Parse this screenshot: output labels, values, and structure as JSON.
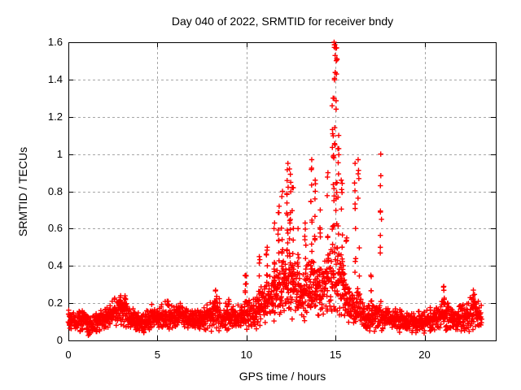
{
  "window": {
    "background": "#ffffff",
    "border_color": "#000000",
    "grid_color": "#a6a6a6"
  },
  "chart_data": {
    "type": "scatter",
    "title": "Day 040 of 2022, SRMTID for receiver bndy",
    "xlabel": "GPS time / hours",
    "ylabel": "SRMTID / TECUs",
    "xlim": [
      0,
      24
    ],
    "ylim": [
      0,
      1.6
    ],
    "xtick_values": [
      0,
      5,
      10,
      15,
      20
    ],
    "xtick_labels": [
      "0",
      "5",
      "10",
      "15",
      "20"
    ],
    "ytick_values": [
      0,
      0.2,
      0.4,
      0.6,
      0.8,
      1,
      1.2,
      1.4,
      1.6
    ],
    "ytick_labels": [
      "0",
      "0.2",
      "0.4",
      "0.6",
      "0.8",
      "1",
      "1.2",
      "1.4",
      "1.6"
    ],
    "grid": true,
    "legend": "none",
    "marker": "plus",
    "marker_color": "#ff0000",
    "x_data_range": [
      0,
      23.2
    ],
    "peak_value": 1.6,
    "peak_hour": 15.0,
    "band_profile": [
      [
        0.0,
        0.12,
        0.05
      ],
      [
        0.4,
        0.1,
        0.04
      ],
      [
        0.8,
        0.11,
        0.05
      ],
      [
        1.3,
        0.08,
        0.05
      ],
      [
        1.8,
        0.11,
        0.04
      ],
      [
        2.3,
        0.13,
        0.05
      ],
      [
        2.7,
        0.15,
        0.07
      ],
      [
        3.1,
        0.16,
        0.07
      ],
      [
        3.5,
        0.12,
        0.05
      ],
      [
        3.9,
        0.1,
        0.04
      ],
      [
        4.3,
        0.09,
        0.05
      ],
      [
        4.7,
        0.13,
        0.05
      ],
      [
        5.1,
        0.12,
        0.05
      ],
      [
        5.5,
        0.14,
        0.06
      ],
      [
        5.9,
        0.12,
        0.05
      ],
      [
        6.3,
        0.14,
        0.05
      ],
      [
        6.7,
        0.12,
        0.05
      ],
      [
        7.1,
        0.11,
        0.04
      ],
      [
        7.6,
        0.12,
        0.05
      ],
      [
        8.1,
        0.14,
        0.07
      ],
      [
        8.35,
        0.16,
        0.09
      ],
      [
        8.6,
        0.12,
        0.05
      ],
      [
        9.0,
        0.13,
        0.06
      ],
      [
        9.4,
        0.12,
        0.05
      ],
      [
        9.8,
        0.13,
        0.06
      ],
      [
        10.0,
        0.15,
        0.08
      ],
      [
        10.3,
        0.13,
        0.06
      ],
      [
        10.6,
        0.16,
        0.08
      ],
      [
        10.9,
        0.19,
        0.09
      ],
      [
        11.2,
        0.22,
        0.1
      ],
      [
        11.5,
        0.24,
        0.11
      ],
      [
        11.8,
        0.27,
        0.13
      ],
      [
        12.1,
        0.29,
        0.14
      ],
      [
        12.4,
        0.3,
        0.15
      ],
      [
        12.7,
        0.27,
        0.13
      ],
      [
        13.0,
        0.22,
        0.1
      ],
      [
        13.3,
        0.25,
        0.11
      ],
      [
        13.6,
        0.28,
        0.13
      ],
      [
        13.9,
        0.29,
        0.13
      ],
      [
        14.2,
        0.27,
        0.12
      ],
      [
        14.5,
        0.28,
        0.13
      ],
      [
        14.8,
        0.32,
        0.16
      ],
      [
        15.1,
        0.33,
        0.17
      ],
      [
        15.4,
        0.27,
        0.13
      ],
      [
        15.7,
        0.2,
        0.1
      ],
      [
        16.0,
        0.18,
        0.09
      ],
      [
        16.3,
        0.19,
        0.1
      ],
      [
        16.6,
        0.12,
        0.06
      ],
      [
        16.9,
        0.13,
        0.07
      ],
      [
        17.2,
        0.14,
        0.07
      ],
      [
        17.6,
        0.13,
        0.06
      ],
      [
        18.0,
        0.12,
        0.05
      ],
      [
        18.5,
        0.11,
        0.05
      ],
      [
        19.0,
        0.1,
        0.04
      ],
      [
        19.4,
        0.09,
        0.04
      ],
      [
        19.8,
        0.1,
        0.05
      ],
      [
        20.2,
        0.11,
        0.05
      ],
      [
        20.6,
        0.12,
        0.05
      ],
      [
        21.0,
        0.16,
        0.08
      ],
      [
        21.3,
        0.13,
        0.06
      ],
      [
        21.7,
        0.11,
        0.05
      ],
      [
        22.1,
        0.12,
        0.06
      ],
      [
        22.5,
        0.13,
        0.07
      ],
      [
        22.8,
        0.17,
        0.08
      ],
      [
        23.0,
        0.15,
        0.07
      ],
      [
        23.2,
        0.13,
        0.06
      ]
    ],
    "spikes": [
      [
        2.9,
        0.18,
        0.24,
        5
      ],
      [
        5.6,
        0.17,
        0.21,
        4
      ],
      [
        8.25,
        0.18,
        0.27,
        6
      ],
      [
        9.0,
        0.17,
        0.22,
        4
      ],
      [
        9.95,
        0.2,
        0.35,
        8
      ],
      [
        10.75,
        0.24,
        0.45,
        7
      ],
      [
        11.15,
        0.28,
        0.5,
        7
      ],
      [
        11.55,
        0.3,
        0.63,
        9
      ],
      [
        11.8,
        0.33,
        0.72,
        10
      ],
      [
        12.0,
        0.38,
        0.8,
        9
      ],
      [
        12.3,
        0.45,
        0.95,
        15
      ],
      [
        12.45,
        0.4,
        0.92,
        12
      ],
      [
        12.6,
        0.35,
        0.82,
        9
      ],
      [
        12.9,
        0.28,
        0.6,
        7
      ],
      [
        13.3,
        0.28,
        0.63,
        7
      ],
      [
        13.65,
        0.38,
        0.97,
        13
      ],
      [
        13.85,
        0.33,
        0.86,
        9
      ],
      [
        14.15,
        0.3,
        0.7,
        7
      ],
      [
        14.55,
        0.33,
        0.9,
        7
      ],
      [
        14.85,
        0.4,
        1.3,
        12
      ],
      [
        14.95,
        0.5,
        1.6,
        18
      ],
      [
        15.05,
        0.55,
        1.57,
        14
      ],
      [
        15.15,
        0.38,
        1.1,
        9
      ],
      [
        15.35,
        0.3,
        0.86,
        10
      ],
      [
        15.6,
        0.2,
        0.55,
        5
      ],
      [
        16.1,
        0.25,
        0.95,
        9
      ],
      [
        16.3,
        0.28,
        0.97,
        7
      ],
      [
        17.0,
        0.18,
        0.35,
        5
      ],
      [
        17.55,
        0.33,
        1.0,
        9
      ],
      [
        21.1,
        0.18,
        0.29,
        6
      ],
      [
        22.75,
        0.18,
        0.27,
        6
      ]
    ]
  }
}
